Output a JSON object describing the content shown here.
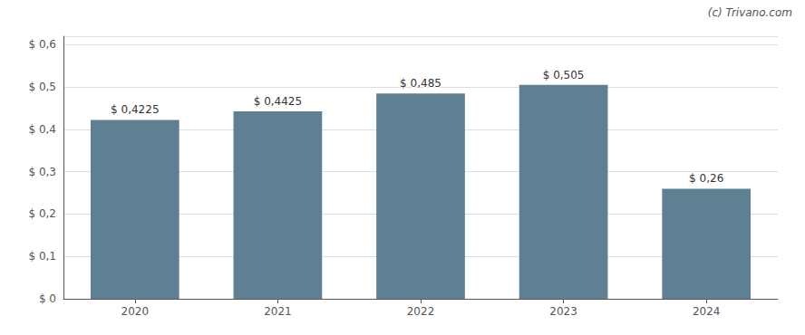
{
  "chart_data": {
    "type": "bar",
    "categories": [
      "2020",
      "2021",
      "2022",
      "2023",
      "2024"
    ],
    "values": [
      0.4225,
      0.4425,
      0.485,
      0.505,
      0.26
    ],
    "value_labels": [
      "$ 0,4225",
      "$ 0,4425",
      "$ 0,485",
      "$ 0,505",
      "$ 0,26"
    ],
    "color": "#5f7f93",
    "ylim": [
      0,
      0.62
    ],
    "yticks": [
      {
        "value": 0.0,
        "label": "$ 0"
      },
      {
        "value": 0.1,
        "label": "$ 0,1"
      },
      {
        "value": 0.2,
        "label": "$ 0,2"
      },
      {
        "value": 0.3,
        "label": "$ 0,3"
      },
      {
        "value": 0.4,
        "label": "$ 0,4"
      },
      {
        "value": 0.5,
        "label": "$ 0,5"
      },
      {
        "value": 0.6,
        "label": "$ 0,6"
      }
    ],
    "grid": true,
    "data_labels": true,
    "annotations": [
      "(c) Trivano.com"
    ]
  }
}
